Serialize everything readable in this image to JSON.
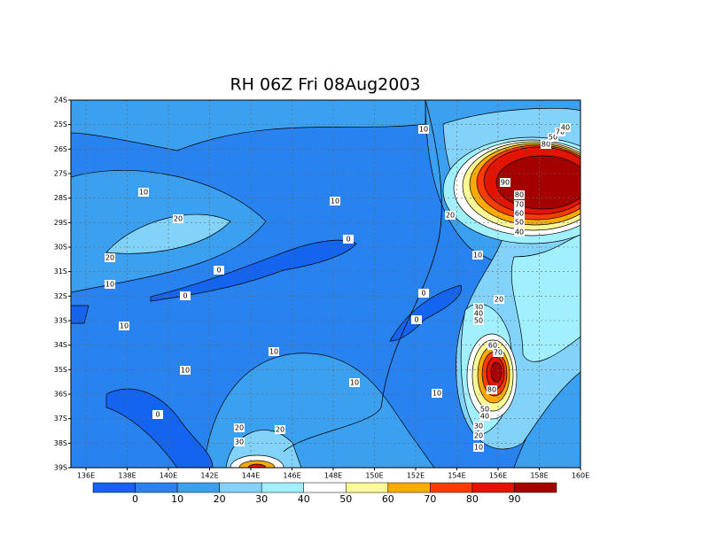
{
  "title": "RH 06Z Fri 08Aug2003",
  "x_ticks": [
    "136E",
    "138E",
    "140E",
    "142E",
    "144E",
    "146E",
    "148E",
    "150E",
    "152E",
    "154E",
    "156E",
    "158E",
    "160E"
  ],
  "y_ticks": [
    "24S",
    "25S",
    "26S",
    "27S",
    "28S",
    "29S",
    "30S",
    "31S",
    "32S",
    "33S",
    "34S",
    "35S",
    "36S",
    "37S",
    "38S",
    "39S"
  ],
  "colorbar": {
    "colors": [
      "#1464f0",
      "#2882f0",
      "#3ca0f0",
      "#82d2fa",
      "#a0f0ff",
      "#ffffff",
      "#fafa96",
      "#ffaa00",
      "#ff3c00",
      "#e11400",
      "#a50000"
    ],
    "labels": [
      "0",
      "10",
      "20",
      "30",
      "40",
      "50",
      "60",
      "70",
      "80",
      "90"
    ]
  },
  "contour_labels": [
    "10",
    "10",
    "10",
    "20",
    "20",
    "0",
    "20",
    "10",
    "0",
    "10",
    "0",
    "0",
    "20",
    "0",
    "10",
    "10",
    "10",
    "10",
    "10",
    "0",
    "20",
    "20",
    "30",
    "90",
    "80",
    "70",
    "60",
    "50",
    "40",
    "80",
    "50",
    "70",
    "40",
    "30",
    "40",
    "50",
    "60",
    "70",
    "80",
    "50",
    "40",
    "30",
    "20",
    "10"
  ]
}
